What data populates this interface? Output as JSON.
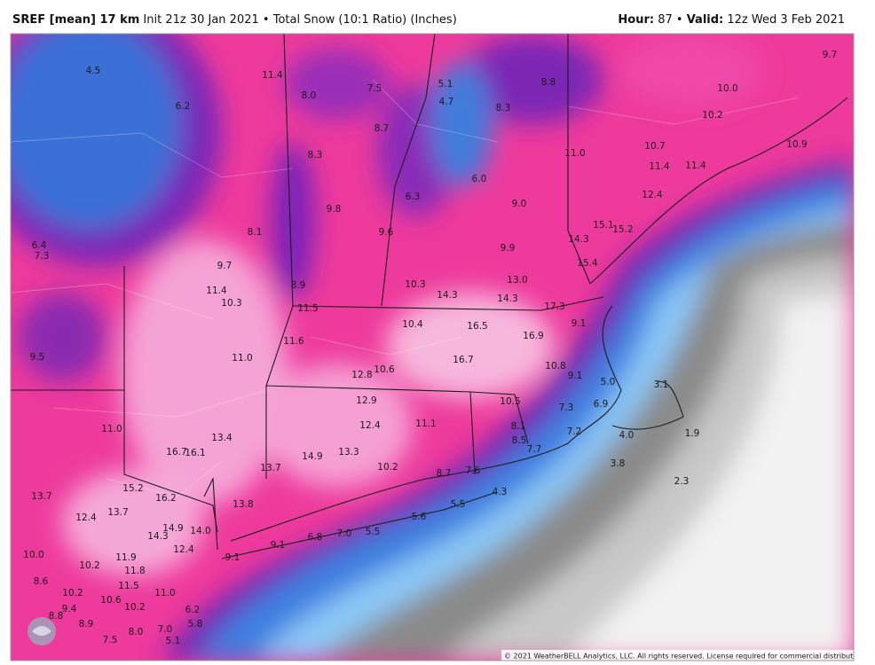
{
  "header": {
    "model": "SREF [mean] 17 km",
    "init": "Init 21z 30 Jan 2021",
    "product": "• Total Snow (10:1 Ratio) (Inches)",
    "hour_label": "Hour:",
    "hour": "87 •",
    "valid_label": "Valid:",
    "valid": "12z Wed 3 Feb 2021"
  },
  "map": {
    "labels": [
      "4.5",
      "6.2",
      "11.4",
      "8.0",
      "7.5",
      "5.1",
      "4.7",
      "8.8",
      "8.3",
      "8.7",
      "9.7",
      "10.0",
      "10.2",
      "8.3",
      "10.7",
      "11.0",
      "11.4",
      "11.4",
      "10.9",
      "6.0",
      "6.3",
      "9.0",
      "12.4",
      "9.8",
      "9.6",
      "15.1",
      "15.2",
      "14.3",
      "8.1",
      "6.4",
      "7.3",
      "9.9",
      "15.4",
      "9.7",
      "13.0",
      "10.3",
      "14.3",
      "14.3",
      "11.4",
      "10.3",
      "8.9",
      "17.3",
      "11.5",
      "9.1",
      "10.4",
      "16.5",
      "16.9",
      "11.6",
      "9.5",
      "11.0",
      "16.7",
      "10.8",
      "10.6",
      "12.8",
      "9.1",
      "5.0",
      "3.1",
      "10.5",
      "12.9",
      "6.9",
      "7.3",
      "11.0",
      "12.4",
      "11.1",
      "8.1",
      "7.2",
      "4.0",
      "1.9",
      "13.4",
      "8.5",
      "7.7",
      "16.7",
      "16.1",
      "13.3",
      "14.9",
      "13.7",
      "10.2",
      "3.8",
      "8.7",
      "7.6",
      "2.3",
      "15.2",
      "16.2",
      "13.7",
      "4.3",
      "5.5",
      "13.8",
      "13.7",
      "12.4",
      "5.6",
      "14.9",
      "14.0",
      "14.3",
      "7.0",
      "5.5",
      "6.8",
      "9.1",
      "12.4",
      "10.0",
      "9.1",
      "11.9",
      "10.2",
      "11.8",
      "8.6",
      "11.5",
      "11.0",
      "10.2",
      "10.6",
      "10.2",
      "9.4",
      "6.2",
      "8.8",
      "8.9",
      "5.8",
      "8.0",
      "7.0",
      "7.5",
      "5.1"
    ]
  },
  "footer": {
    "copyright": "© 2021 WeatherBELL Analytics, LLC. All rights reserved. License required for commercial distribution."
  }
}
